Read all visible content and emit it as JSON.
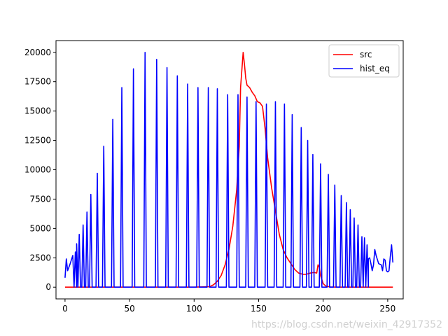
{
  "chart_data": {
    "type": "line",
    "title": "",
    "xlabel": "",
    "ylabel": "",
    "xlim": [
      -7,
      262
    ],
    "ylim": [
      -1000,
      21000
    ],
    "x_ticks": [
      0,
      50,
      100,
      150,
      200,
      250
    ],
    "y_ticks": [
      0,
      2500,
      5000,
      7500,
      10000,
      12500,
      15000,
      17500,
      20000
    ],
    "grid": false,
    "legend_position": "top-right",
    "series": [
      {
        "name": "src",
        "color": "#ff0000",
        "points": [
          [
            0,
            0
          ],
          [
            100,
            0
          ],
          [
            112,
            40
          ],
          [
            115,
            200
          ],
          [
            118,
            500
          ],
          [
            121,
            1000
          ],
          [
            124,
            1900
          ],
          [
            127,
            3200
          ],
          [
            130,
            5200
          ],
          [
            133,
            8300
          ],
          [
            135,
            12000
          ],
          [
            136,
            17000
          ],
          [
            137,
            18500
          ],
          [
            138,
            20000
          ],
          [
            139,
            19000
          ],
          [
            140,
            17800
          ],
          [
            141,
            17200
          ],
          [
            143,
            17000
          ],
          [
            145,
            16600
          ],
          [
            147,
            16300
          ],
          [
            149,
            15800
          ],
          [
            151,
            15700
          ],
          [
            153,
            15400
          ],
          [
            155,
            13500
          ],
          [
            157,
            11000
          ],
          [
            160,
            8500
          ],
          [
            163,
            6500
          ],
          [
            166,
            4500
          ],
          [
            169,
            3200
          ],
          [
            172,
            2500
          ],
          [
            175,
            2000
          ],
          [
            178,
            1500
          ],
          [
            181,
            1200
          ],
          [
            184,
            1100
          ],
          [
            187,
            1100
          ],
          [
            190,
            1200
          ],
          [
            193,
            1250
          ],
          [
            195,
            1200
          ],
          [
            196,
            1900
          ],
          [
            197,
            1700
          ],
          [
            198,
            1000
          ],
          [
            200,
            300
          ],
          [
            202,
            100
          ],
          [
            205,
            20
          ],
          [
            210,
            0
          ],
          [
            254,
            0
          ]
        ]
      },
      {
        "name": "hist_eq",
        "color": "#0000ff",
        "baseline_points": [
          [
            0,
            800
          ],
          [
            1,
            2400
          ],
          [
            2,
            1400
          ],
          [
            4,
            2000
          ],
          [
            6,
            2700
          ],
          [
            7,
            0
          ]
        ],
        "spikes": [
          [
            8,
            3000
          ],
          [
            9,
            3700
          ],
          [
            11,
            4500
          ],
          [
            14,
            5300
          ],
          [
            17,
            6400
          ],
          [
            20,
            7900
          ],
          [
            25,
            9700
          ],
          [
            30,
            12000
          ],
          [
            37,
            14300
          ],
          [
            44,
            17000
          ],
          [
            53,
            18600
          ],
          [
            62,
            20000
          ],
          [
            71,
            19400
          ],
          [
            79,
            18700
          ],
          [
            87,
            18000
          ],
          [
            95,
            17300
          ],
          [
            103,
            17000
          ],
          [
            111,
            17000
          ],
          [
            118,
            16900
          ],
          [
            126,
            16400
          ],
          [
            134,
            16400
          ],
          [
            141,
            16200
          ],
          [
            148,
            15800
          ],
          [
            156,
            15600
          ],
          [
            163,
            15800
          ],
          [
            170,
            15600
          ],
          [
            176,
            14700
          ],
          [
            183,
            13600
          ],
          [
            188,
            12500
          ],
          [
            192,
            11300
          ],
          [
            198,
            10500
          ],
          [
            204,
            9600
          ],
          [
            209,
            8700
          ],
          [
            214,
            7800
          ],
          [
            218,
            7200
          ],
          [
            221,
            6600
          ],
          [
            224,
            5900
          ],
          [
            227,
            5300
          ],
          [
            230,
            4300
          ],
          [
            232,
            4200
          ],
          [
            234,
            3600
          ]
        ],
        "tail_points": [
          [
            235,
            2400
          ],
          [
            236,
            2500
          ],
          [
            237,
            2000
          ],
          [
            238,
            1400
          ],
          [
            239,
            1900
          ],
          [
            240,
            3200
          ],
          [
            241,
            2700
          ],
          [
            243,
            2000
          ],
          [
            245,
            1900
          ],
          [
            246,
            1400
          ],
          [
            247,
            2400
          ],
          [
            248,
            2300
          ],
          [
            249,
            1400
          ],
          [
            250,
            1300
          ],
          [
            251,
            1400
          ],
          [
            252,
            2600
          ],
          [
            253,
            3600
          ],
          [
            254,
            2100
          ]
        ]
      }
    ]
  },
  "watermark": "https://blog.csdn.net/weixin_42917352"
}
